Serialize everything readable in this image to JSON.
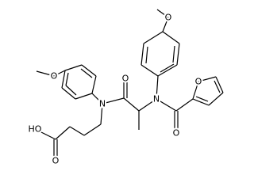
{
  "atoms": {
    "methoxy_o_right": "O",
    "methoxy_o_left": "O",
    "amide_n_left": "N",
    "amide_o": "O",
    "amine_n_right": "N",
    "furoyl_o": "O",
    "furan_o": "O",
    "acid_oh": "HO",
    "acid_o": "O"
  }
}
